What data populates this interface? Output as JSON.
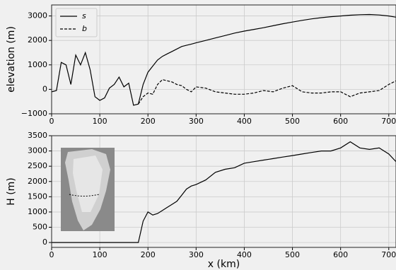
{
  "chart_data": [
    {
      "type": "line",
      "ylabel": "elevation  (m)",
      "legend": "upper left",
      "grid": true,
      "xlim": [
        0,
        715
      ],
      "ylim": [
        -1000,
        3450
      ],
      "xticks": [
        0,
        100,
        200,
        300,
        400,
        500,
        600,
        700
      ],
      "yticks": [
        {
          "value": -1000,
          "label": "−1000"
        },
        0,
        1000,
        2000,
        3000
      ],
      "x": [
        0,
        10,
        20,
        30,
        40,
        50,
        60,
        70,
        80,
        90,
        100,
        110,
        120,
        130,
        140,
        150,
        160,
        170,
        180,
        190,
        200,
        210,
        220,
        230,
        240,
        250,
        260,
        270,
        280,
        290,
        300,
        320,
        340,
        360,
        380,
        400,
        420,
        440,
        460,
        480,
        500,
        520,
        540,
        560,
        580,
        600,
        620,
        640,
        660,
        680,
        700,
        715
      ],
      "series": [
        {
          "name": "s",
          "color": "#000000",
          "linestyle": "solid",
          "values": [
            -100,
            -50,
            1100,
            1000,
            200,
            1400,
            1000,
            1500,
            800,
            -300,
            -450,
            -350,
            50,
            200,
            500,
            100,
            250,
            -650,
            -600,
            200,
            700,
            950,
            1200,
            1350,
            1450,
            1550,
            1650,
            1750,
            1800,
            1850,
            1900,
            2000,
            2100,
            2200,
            2300,
            2380,
            2450,
            2520,
            2600,
            2680,
            2750,
            2820,
            2880,
            2930,
            2970,
            3000,
            3030,
            3050,
            3060,
            3040,
            3000,
            2950
          ]
        },
        {
          "name": "b",
          "color": "#000000",
          "linestyle": "dashed",
          "values": [
            null,
            null,
            null,
            null,
            null,
            null,
            null,
            null,
            null,
            null,
            null,
            null,
            null,
            null,
            null,
            null,
            null,
            null,
            -600,
            -300,
            -150,
            -200,
            200,
            400,
            350,
            300,
            200,
            150,
            0,
            -100,
            100,
            50,
            -100,
            -150,
            -200,
            -200,
            -150,
            -50,
            -100,
            50,
            150,
            -100,
            -150,
            -150,
            -100,
            -100,
            -300,
            -150,
            -100,
            -50,
            200,
            350
          ]
        }
      ]
    },
    {
      "type": "line",
      "ylabel": "H  (m)",
      "xlabel": "x  (km)",
      "grid": true,
      "xlim": [
        0,
        715
      ],
      "ylim": [
        -160,
        3500
      ],
      "xticks": [
        0,
        100,
        200,
        300,
        400,
        500,
        600,
        700
      ],
      "yticks": [
        0,
        500,
        1000,
        1500,
        2000,
        2500,
        3000,
        3500
      ],
      "x": [
        0,
        10,
        20,
        30,
        40,
        50,
        60,
        70,
        80,
        90,
        100,
        110,
        120,
        130,
        140,
        150,
        160,
        170,
        180,
        190,
        200,
        210,
        220,
        230,
        240,
        250,
        260,
        270,
        280,
        290,
        300,
        320,
        340,
        360,
        380,
        400,
        420,
        440,
        460,
        480,
        500,
        520,
        540,
        560,
        580,
        600,
        620,
        640,
        660,
        680,
        700,
        715
      ],
      "series": [
        {
          "color": "#000000",
          "linestyle": "solid",
          "values": [
            0,
            0,
            0,
            0,
            0,
            0,
            0,
            0,
            0,
            0,
            0,
            0,
            0,
            0,
            0,
            0,
            0,
            0,
            0,
            700,
            1000,
            900,
            950,
            1050,
            1150,
            1250,
            1350,
            1550,
            1750,
            1850,
            1900,
            2050,
            2300,
            2400,
            2450,
            2600,
            2650,
            2700,
            2750,
            2800,
            2850,
            2900,
            2950,
            3000,
            3000,
            3100,
            3300,
            3100,
            3050,
            3100,
            2900,
            2650
          ]
        }
      ]
    }
  ]
}
